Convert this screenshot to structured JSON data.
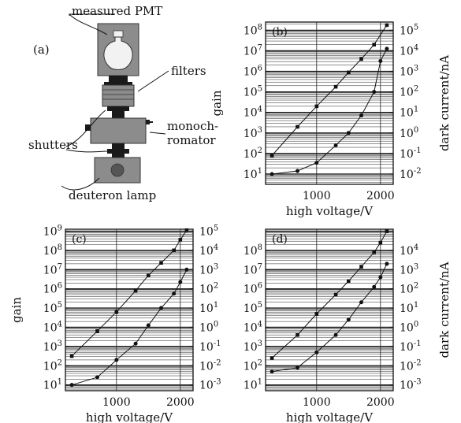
{
  "diagram_a": {
    "panel_label": "(a)",
    "labels": {
      "pmt": "measured PMT",
      "filters": "filters",
      "shutters": "shutters",
      "monochromator_line1": "monoch-",
      "monochromator_line2": "romator",
      "lamp": "deuteron lamp"
    },
    "colors": {
      "box_fill": "#8c8c8c",
      "box_stroke": "#333333",
      "bulb_fill": "#f2f2f2",
      "dark": "#1a1a1a"
    }
  },
  "chart_data": [
    {
      "panel": "(b)",
      "type": "line",
      "x_scale": "linear",
      "xlim": [
        200,
        2200
      ],
      "x_ticks": [
        1000,
        2000
      ],
      "xlabel": "high voltage/V",
      "ylabel_left": "gain",
      "ylabel_right": "dark current/nA",
      "ylim_left_exp": [
        0.5,
        8.4
      ],
      "y_ticks_left_exp": [
        1,
        2,
        3,
        4,
        5,
        6,
        7,
        8
      ],
      "ylim_right_exp": [
        -2.5,
        5.4
      ],
      "y_ticks_right_exp": [
        -2,
        -1,
        0,
        1,
        2,
        3,
        4,
        5
      ],
      "grid": true,
      "series": [
        {
          "axis": "left",
          "marker": "square",
          "x": [
            300,
            700,
            1000,
            1300,
            1500,
            1700,
            1900,
            2100
          ],
          "y_exp": [
            1.9,
            3.3,
            4.3,
            5.25,
            5.95,
            6.6,
            7.3,
            8.25
          ]
        },
        {
          "axis": "right",
          "marker": "circle",
          "x": [
            300,
            700,
            1000,
            1300,
            1500,
            1700,
            1900,
            2000,
            2100
          ],
          "y_exp": [
            -2.0,
            -1.85,
            -1.45,
            -0.6,
            0.0,
            0.85,
            2.0,
            3.5,
            4.1
          ]
        }
      ]
    },
    {
      "panel": "(c)",
      "type": "line",
      "x_scale": "linear",
      "xlim": [
        200,
        2200
      ],
      "x_ticks": [
        1000,
        2000
      ],
      "xlabel": "high voltage/V",
      "ylabel_left": "gain",
      "ylabel_right": "",
      "ylim_left_exp": [
        0.7,
        9.1
      ],
      "y_ticks_left_exp": [
        1,
        2,
        3,
        4,
        5,
        6,
        7,
        8,
        9
      ],
      "ylim_right_exp": [
        -3.3,
        5.1
      ],
      "y_ticks_right_exp": [
        -3,
        -2,
        -1,
        0,
        1,
        2,
        3,
        4,
        5
      ],
      "grid": true,
      "series": [
        {
          "axis": "left",
          "marker": "square",
          "x": [
            300,
            700,
            1000,
            1300,
            1500,
            1700,
            1900,
            2000,
            2100
          ],
          "y_exp": [
            2.5,
            3.8,
            4.8,
            5.9,
            6.7,
            7.35,
            8.0,
            8.55,
            9.05
          ]
        },
        {
          "axis": "right",
          "marker": "circle",
          "x": [
            300,
            700,
            1000,
            1300,
            1500,
            1700,
            1900,
            2000,
            2100
          ],
          "y_exp": [
            -3.0,
            -2.6,
            -1.7,
            -0.85,
            0.1,
            1.0,
            1.75,
            2.35,
            3.0
          ]
        }
      ]
    },
    {
      "panel": "(d)",
      "type": "line",
      "x_scale": "linear",
      "xlim": [
        200,
        2200
      ],
      "x_ticks": [
        1000,
        2000
      ],
      "xlabel": "high voltage/V",
      "ylabel_left": "",
      "ylabel_right": "dark current/nA",
      "ylim_left_exp": [
        0.7,
        9.1
      ],
      "y_ticks_left_exp": [
        1,
        2,
        3,
        4,
        5,
        6,
        7,
        8
      ],
      "ylim_right_exp": [
        -3.3,
        5.1
      ],
      "y_ticks_right_exp": [
        -3,
        -2,
        -1,
        0,
        1,
        2,
        3,
        4
      ],
      "grid": true,
      "series": [
        {
          "axis": "left",
          "marker": "square",
          "x": [
            300,
            700,
            1000,
            1300,
            1500,
            1700,
            1900,
            2000,
            2100
          ],
          "y_exp": [
            2.4,
            3.6,
            4.7,
            5.7,
            6.4,
            7.15,
            7.9,
            8.4,
            9.0
          ]
        },
        {
          "axis": "right",
          "marker": "circle",
          "x": [
            300,
            700,
            1000,
            1300,
            1500,
            1700,
            1900,
            2000,
            2100
          ],
          "y_exp": [
            -2.3,
            -2.1,
            -1.3,
            -0.4,
            0.4,
            1.3,
            2.1,
            2.6,
            3.3
          ]
        }
      ]
    }
  ]
}
